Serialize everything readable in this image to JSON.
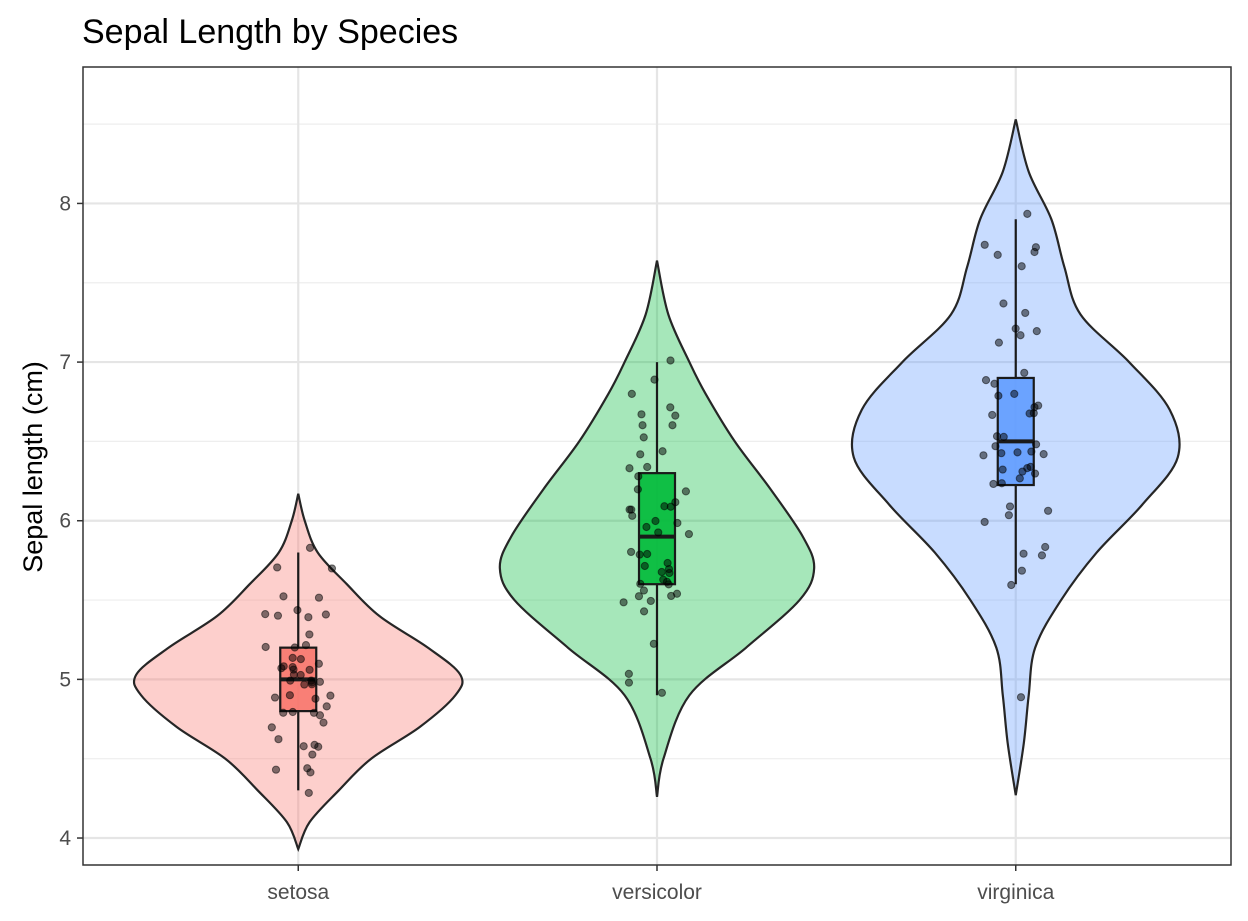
{
  "chart_data": {
    "type": "violin",
    "title": "Sepal Length by Species",
    "xlabel": "",
    "ylabel": "Sepal length (cm)",
    "ylim": [
      3.83,
      8.86
    ],
    "yticks": [
      4,
      5,
      6,
      7,
      8
    ],
    "grid": true,
    "legend": "none",
    "categories": [
      "setosa",
      "versicolor",
      "virginica"
    ],
    "series": [
      {
        "category": "setosa",
        "violin_fill": "#F8766D",
        "box_fill": "#F8766D",
        "boxplot": {
          "min": 4.3,
          "q1": 4.8,
          "median": 5.0,
          "q3": 5.2,
          "max": 5.8
        },
        "violin_range": [
          3.93,
          6.17
        ],
        "density": [
          [
            3.93,
            0.0
          ],
          [
            4.1,
            0.07
          ],
          [
            4.3,
            0.25
          ],
          [
            4.5,
            0.45
          ],
          [
            4.7,
            0.75
          ],
          [
            4.9,
            0.97
          ],
          [
            5.03,
            1.0
          ],
          [
            5.2,
            0.8
          ],
          [
            5.4,
            0.5
          ],
          [
            5.6,
            0.3
          ],
          [
            5.8,
            0.12
          ],
          [
            6.0,
            0.04
          ],
          [
            6.17,
            0.0
          ]
        ],
        "points": [
          4.3,
          4.4,
          4.4,
          4.4,
          4.5,
          4.6,
          4.6,
          4.6,
          4.6,
          4.7,
          4.7,
          4.8,
          4.8,
          4.8,
          4.8,
          4.8,
          4.9,
          4.9,
          4.9,
          4.9,
          5.0,
          5.0,
          5.0,
          5.0,
          5.0,
          5.0,
          5.0,
          5.0,
          5.1,
          5.1,
          5.1,
          5.1,
          5.1,
          5.1,
          5.1,
          5.1,
          5.2,
          5.2,
          5.2,
          5.3,
          5.4,
          5.4,
          5.4,
          5.4,
          5.4,
          5.5,
          5.5,
          5.7,
          5.7,
          5.8
        ]
      },
      {
        "category": "versicolor",
        "violin_fill": "#00BA38",
        "box_fill": "#00BA38",
        "boxplot": {
          "min": 4.9,
          "q1": 5.6,
          "median": 5.9,
          "q3": 6.3,
          "max": 7.0
        },
        "violin_range": [
          4.26,
          7.64
        ],
        "density": [
          [
            4.26,
            0.0
          ],
          [
            4.5,
            0.04
          ],
          [
            4.9,
            0.2
          ],
          [
            5.2,
            0.55
          ],
          [
            5.5,
            0.88
          ],
          [
            5.7,
            0.97
          ],
          [
            5.9,
            0.9
          ],
          [
            6.2,
            0.7
          ],
          [
            6.5,
            0.48
          ],
          [
            6.8,
            0.3
          ],
          [
            7.0,
            0.2
          ],
          [
            7.3,
            0.07
          ],
          [
            7.64,
            0.0
          ]
        ],
        "points": [
          4.9,
          5.0,
          5.0,
          5.2,
          5.4,
          5.5,
          5.5,
          5.5,
          5.5,
          5.5,
          5.6,
          5.6,
          5.6,
          5.6,
          5.6,
          5.7,
          5.7,
          5.7,
          5.7,
          5.7,
          5.8,
          5.8,
          5.8,
          5.9,
          5.9,
          6.0,
          6.0,
          6.0,
          6.0,
          6.1,
          6.1,
          6.1,
          6.1,
          6.1,
          6.2,
          6.2,
          6.3,
          6.3,
          6.3,
          6.4,
          6.4,
          6.5,
          6.6,
          6.6,
          6.7,
          6.7,
          6.7,
          6.8,
          6.9,
          7.0
        ]
      },
      {
        "category": "virginica",
        "violin_fill": "#619CFF",
        "box_fill": "#619CFF",
        "boxplot": {
          "min": 5.6,
          "q1": 6.225,
          "median": 6.5,
          "q3": 6.9,
          "max": 7.9
        },
        "violin_range": [
          4.27,
          8.53
        ],
        "density": [
          [
            4.27,
            0.0
          ],
          [
            4.6,
            0.05
          ],
          [
            4.9,
            0.08
          ],
          [
            5.2,
            0.12
          ],
          [
            5.5,
            0.28
          ],
          [
            5.8,
            0.5
          ],
          [
            6.1,
            0.78
          ],
          [
            6.4,
            1.0
          ],
          [
            6.7,
            0.95
          ],
          [
            7.0,
            0.7
          ],
          [
            7.3,
            0.4
          ],
          [
            7.6,
            0.3
          ],
          [
            7.9,
            0.22
          ],
          [
            8.2,
            0.08
          ],
          [
            8.53,
            0.0
          ]
        ],
        "points": [
          4.9,
          5.6,
          5.7,
          5.8,
          5.8,
          5.8,
          6.0,
          6.0,
          6.1,
          6.1,
          6.2,
          6.2,
          6.3,
          6.3,
          6.3,
          6.3,
          6.3,
          6.3,
          6.4,
          6.4,
          6.4,
          6.4,
          6.4,
          6.5,
          6.5,
          6.5,
          6.5,
          6.7,
          6.7,
          6.7,
          6.7,
          6.7,
          6.8,
          6.8,
          6.9,
          6.9,
          6.9,
          7.1,
          7.2,
          7.2,
          7.2,
          7.3,
          7.4,
          7.6,
          7.7,
          7.7,
          7.7,
          7.7,
          7.9
        ]
      }
    ]
  }
}
